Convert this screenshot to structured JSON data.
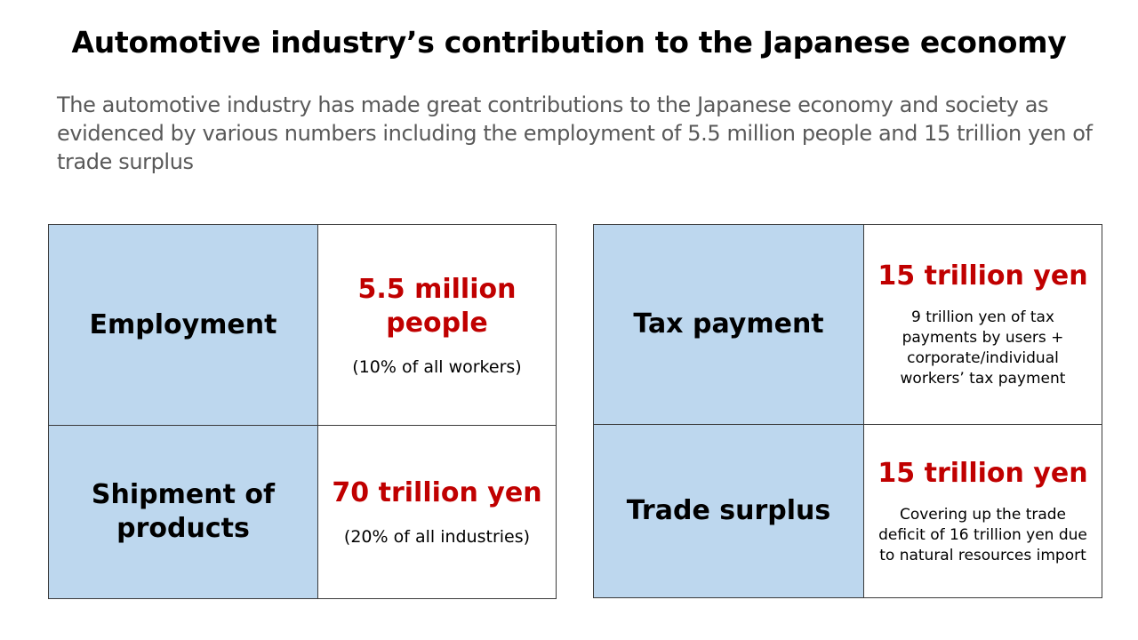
{
  "title": "Automotive industry’s contribution to the Japanese economy",
  "subtitle": "The automotive industry has made great contributions to the Japanese economy and society as evidenced by various numbers including the employment of 5.5 million people and 15 trillion yen of trade surplus",
  "left_table": {
    "rows": [
      {
        "label": "Employment",
        "value": "5.5 million people",
        "note": "(10% of all workers)"
      },
      {
        "label": "Shipment of products",
        "value": "70 trillion yen",
        "note": "(20% of all industries)"
      }
    ]
  },
  "right_table": {
    "rows": [
      {
        "label": "Tax payment",
        "value": "15 trillion yen",
        "note": "9 trillion yen of tax payments by users + corporate/individual workers’ tax payment"
      },
      {
        "label": "Trade surplus",
        "value": "15 trillion yen",
        "note": "Covering up the trade deficit of 16 trillion yen due to natural resources import"
      }
    ]
  },
  "colors": {
    "label_background": "#bdd7ee",
    "value_text": "#c00000",
    "subtitle_text": "#595959",
    "border": "#3a3a3a"
  }
}
